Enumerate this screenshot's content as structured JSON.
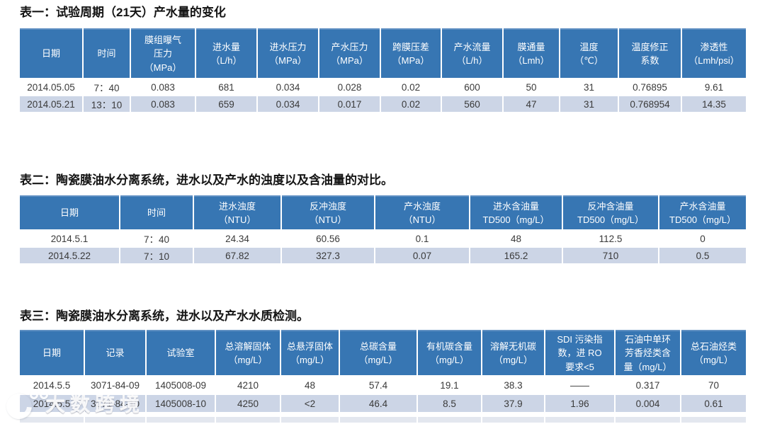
{
  "colors": {
    "page_bg": "#ffffff",
    "header_bg": "#3776b3",
    "header_top_edge": "#5f8fc2",
    "header_text": "#ffffff",
    "row_even_bg": "#ffffff",
    "row_odd_bg": "#ccd5e6",
    "partial_row_bg": "#e3e7ef",
    "data_text": "#3a3a3a",
    "title_text": "#141414"
  },
  "tables": [
    {
      "title": "表一：试验周期（21天）产水量的变化",
      "columns": [
        "日期",
        "时间",
        "膜组曝气\n压力\n（MPa）",
        "进水量\n（L/h）",
        "进水压力\n（MPa）",
        "产水压力\n（MPa）",
        "跨膜压差\n（MPa）",
        "产水流量\n（L/h）",
        "膜通量\n（Lmh）",
        "温度\n（℃）",
        "温度修正\n系数",
        "渗透性\n（Lmh/psi）"
      ],
      "rows": [
        [
          "2014.05.05",
          "7：40",
          "0.083",
          "681",
          "0.034",
          "0.028",
          "0.02",
          "600",
          "50",
          "31",
          "0.76895",
          "9.61"
        ],
        [
          "2014.05.21",
          "13：10",
          "0.083",
          "659",
          "0.034",
          "0.017",
          "0.02",
          "560",
          "47",
          "31",
          "0.768954",
          "14.35"
        ]
      ]
    },
    {
      "title": "表二：陶瓷膜油水分离系统，进水以及产水的浊度以及含油量的对比。",
      "columns": [
        "日期",
        "时间",
        "进水浊度\n（NTU）",
        "反冲浊度\n（NTU）",
        "产水浊度\n（NTU）",
        "进水含油量\nTD500（mg/L）",
        "反冲含油量\nTD500（mg/L）",
        "产水含油量\nTD500（mg/L）"
      ],
      "rows": [
        [
          "2014.5.1",
          "7：40",
          "24.34",
          "60.56",
          "0.1",
          "48",
          "112.5",
          "0"
        ],
        [
          "2014.5.22",
          "7：10",
          "67.82",
          "327.3",
          "0.07",
          "165.2",
          "710",
          "0.5"
        ]
      ]
    },
    {
      "title": "表三：陶瓷膜油水分离系统，进水以及产水水质检测。",
      "columns": [
        "日期",
        "记录",
        "试验室",
        "总溶解固体\n（mg/L）",
        "总悬浮固体\n（mg/L）",
        "总碳含量\n（mg/L）",
        "有机碳含量\n（mg/L）",
        "溶解无机碳\n（mg/L）",
        "SDI 污染指\n数，进 RO\n要求<5",
        "石油中单环\n芳香烃类含\n量（mg/L）",
        "总石油烃类\n（mg/L）"
      ],
      "rows": [
        [
          "2014.5.5",
          "3071-84-09",
          "1405008-09",
          "4210",
          "48",
          "57.4",
          "19.1",
          "38.3",
          "——",
          "0.317",
          "70"
        ],
        [
          "2014.5.5",
          "3071-84-10",
          "1405008-10",
          "4250",
          "<2",
          "46.4",
          "8.5",
          "37.9",
          "1.96",
          "0.004",
          "0.61"
        ]
      ]
    }
  ],
  "watermark": {
    "text": "大数跨境"
  }
}
